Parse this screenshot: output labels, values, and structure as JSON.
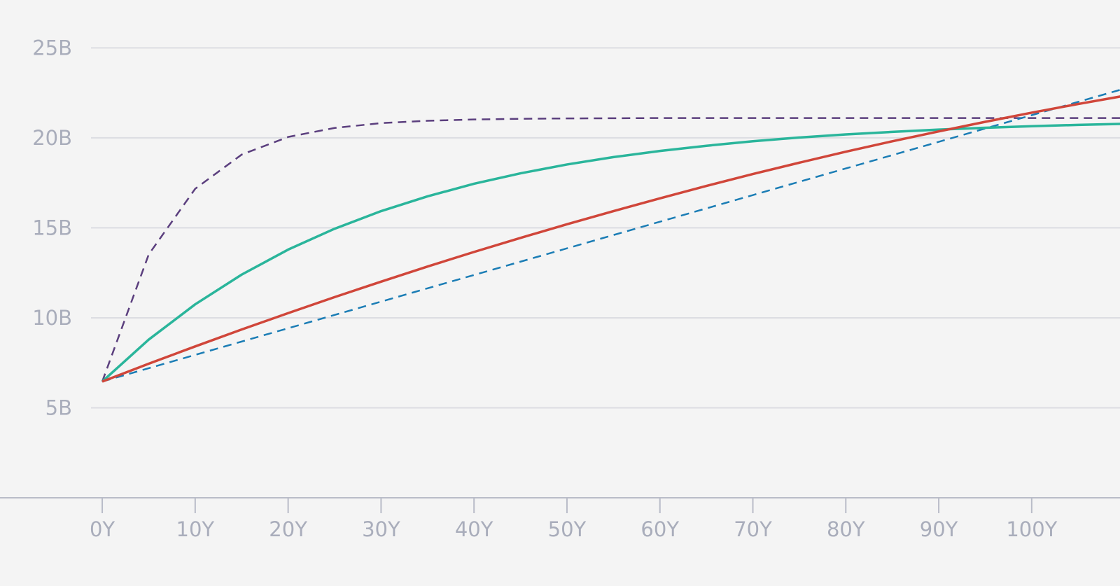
{
  "chart_data": {
    "type": "line",
    "x": [
      0,
      5,
      10,
      15,
      20,
      25,
      30,
      35,
      40,
      45,
      50,
      55,
      60,
      65,
      70,
      75,
      80,
      85,
      90,
      95,
      100,
      105,
      110
    ],
    "xlim": [
      -11,
      109.5
    ],
    "xticks": [
      {
        "value": 0,
        "label": "0Y"
      },
      {
        "value": 10,
        "label": "10Y"
      },
      {
        "value": 20,
        "label": "20Y"
      },
      {
        "value": 30,
        "label": "30Y"
      },
      {
        "value": 40,
        "label": "40Y"
      },
      {
        "value": 50,
        "label": "50Y"
      },
      {
        "value": 60,
        "label": "60Y"
      },
      {
        "value": 70,
        "label": "70Y"
      },
      {
        "value": 80,
        "label": "80Y"
      },
      {
        "value": 90,
        "label": "90Y"
      },
      {
        "value": 100,
        "label": "100Y"
      }
    ],
    "ylim": [
      0,
      27.66
    ],
    "yticks": [
      {
        "value": 5,
        "label": "5B"
      },
      {
        "value": 10,
        "label": "10B"
      },
      {
        "value": 15,
        "label": "15B"
      },
      {
        "value": 20,
        "label": "20B"
      },
      {
        "value": 25,
        "label": "25B"
      }
    ],
    "grid": true,
    "series": [
      {
        "color": "#5b3f7e",
        "dashed": true,
        "values": [
          6.46,
          13.52,
          17.17,
          19.07,
          20.05,
          20.55,
          20.82,
          20.95,
          21.02,
          21.06,
          21.08,
          21.09,
          21.1,
          21.1,
          21.1,
          21.1,
          21.1,
          21.1,
          21.1,
          21.1,
          21.1,
          21.1,
          21.1
        ]
      },
      {
        "color": "#1b7db5",
        "dashed": true,
        "values": [
          6.46,
          7.2,
          7.94,
          8.68,
          9.42,
          10.16,
          10.9,
          11.64,
          12.38,
          13.12,
          13.86,
          14.6,
          15.34,
          16.08,
          16.82,
          17.56,
          18.3,
          19.04,
          19.78,
          20.52,
          21.26,
          22.0,
          22.74
        ]
      },
      {
        "color": "#2ab59b",
        "dashed": false,
        "values": [
          6.46,
          8.79,
          10.75,
          12.4,
          13.79,
          14.95,
          15.93,
          16.75,
          17.45,
          18.03,
          18.52,
          18.93,
          19.27,
          19.56,
          19.81,
          20.02,
          20.19,
          20.33,
          20.46,
          20.56,
          20.65,
          20.72,
          20.78
        ]
      },
      {
        "color": "#d0463a",
        "dashed": false,
        "values": [
          6.46,
          7.45,
          8.41,
          9.35,
          10.26,
          11.15,
          12.01,
          12.85,
          13.66,
          14.44,
          15.2,
          15.93,
          16.64,
          17.33,
          17.99,
          18.62,
          19.23,
          19.81,
          20.36,
          20.89,
          21.4,
          21.88,
          22.34
        ]
      }
    ]
  }
}
